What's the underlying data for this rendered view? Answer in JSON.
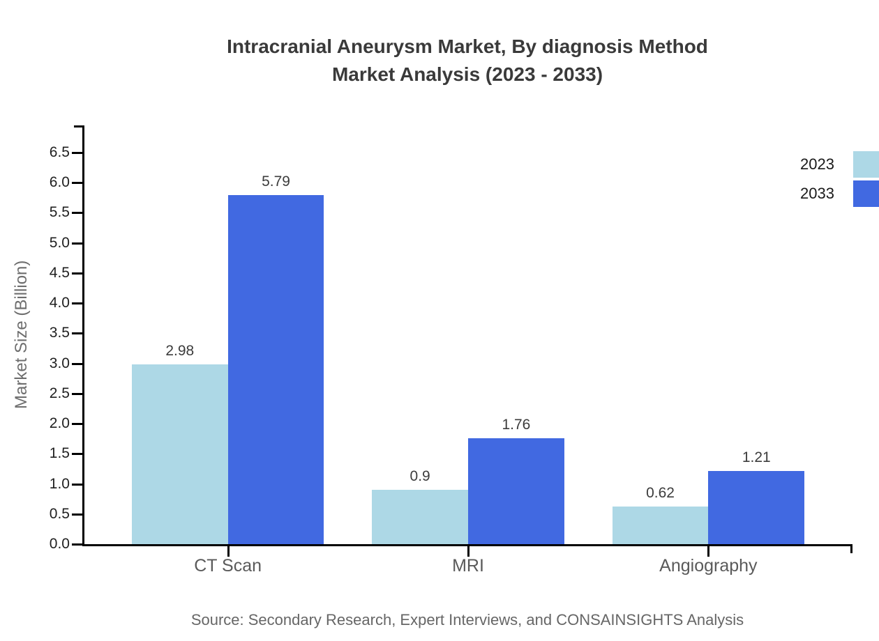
{
  "title": {
    "line1": "Intracranial Aneurysm Market, By diagnosis Method",
    "line2": "Market Analysis (2023 - 2033)"
  },
  "source": "Source: Secondary Research, Expert Interviews, and CONSAINSIGHTS Analysis",
  "chart_data": {
    "type": "bar",
    "title": "Intracranial Aneurysm Market, By diagnosis Method Market Analysis (2023 - 2033)",
    "categories": [
      "CT Scan",
      "MRI",
      "Angiography"
    ],
    "series": [
      {
        "name": "2023",
        "color": "#ADD8E6",
        "values": [
          2.98,
          0.9,
          0.62
        ],
        "labels": [
          "2.98",
          "0.9",
          "0.62"
        ]
      },
      {
        "name": "2033",
        "color": "#4169E1",
        "values": [
          5.79,
          1.76,
          1.21
        ],
        "labels": [
          "5.79",
          "1.76",
          "1.21"
        ]
      }
    ],
    "xlabel": "",
    "ylabel": "Market Size (Billion)",
    "ylim": [
      0,
      6.95
    ],
    "yticks": [
      {
        "value": 0.0,
        "label": "0.0"
      },
      {
        "value": 0.5,
        "label": "0.5"
      },
      {
        "value": 1.0,
        "label": "1.0"
      },
      {
        "value": 1.5,
        "label": "1.5"
      },
      {
        "value": 2.0,
        "label": "2.0"
      },
      {
        "value": 2.5,
        "label": "2.5"
      },
      {
        "value": 3.0,
        "label": "3.0"
      },
      {
        "value": 3.5,
        "label": "3.5"
      },
      {
        "value": 4.0,
        "label": "4.0"
      },
      {
        "value": 4.5,
        "label": "4.5"
      },
      {
        "value": 5.0,
        "label": "5.0"
      },
      {
        "value": 5.5,
        "label": "5.5"
      },
      {
        "value": 6.0,
        "label": "6.0"
      },
      {
        "value": 6.5,
        "label": "6.5"
      }
    ],
    "grid": false,
    "legend_position": "upper-right",
    "axis_color": "#000000",
    "background_color": "#ffffff"
  }
}
